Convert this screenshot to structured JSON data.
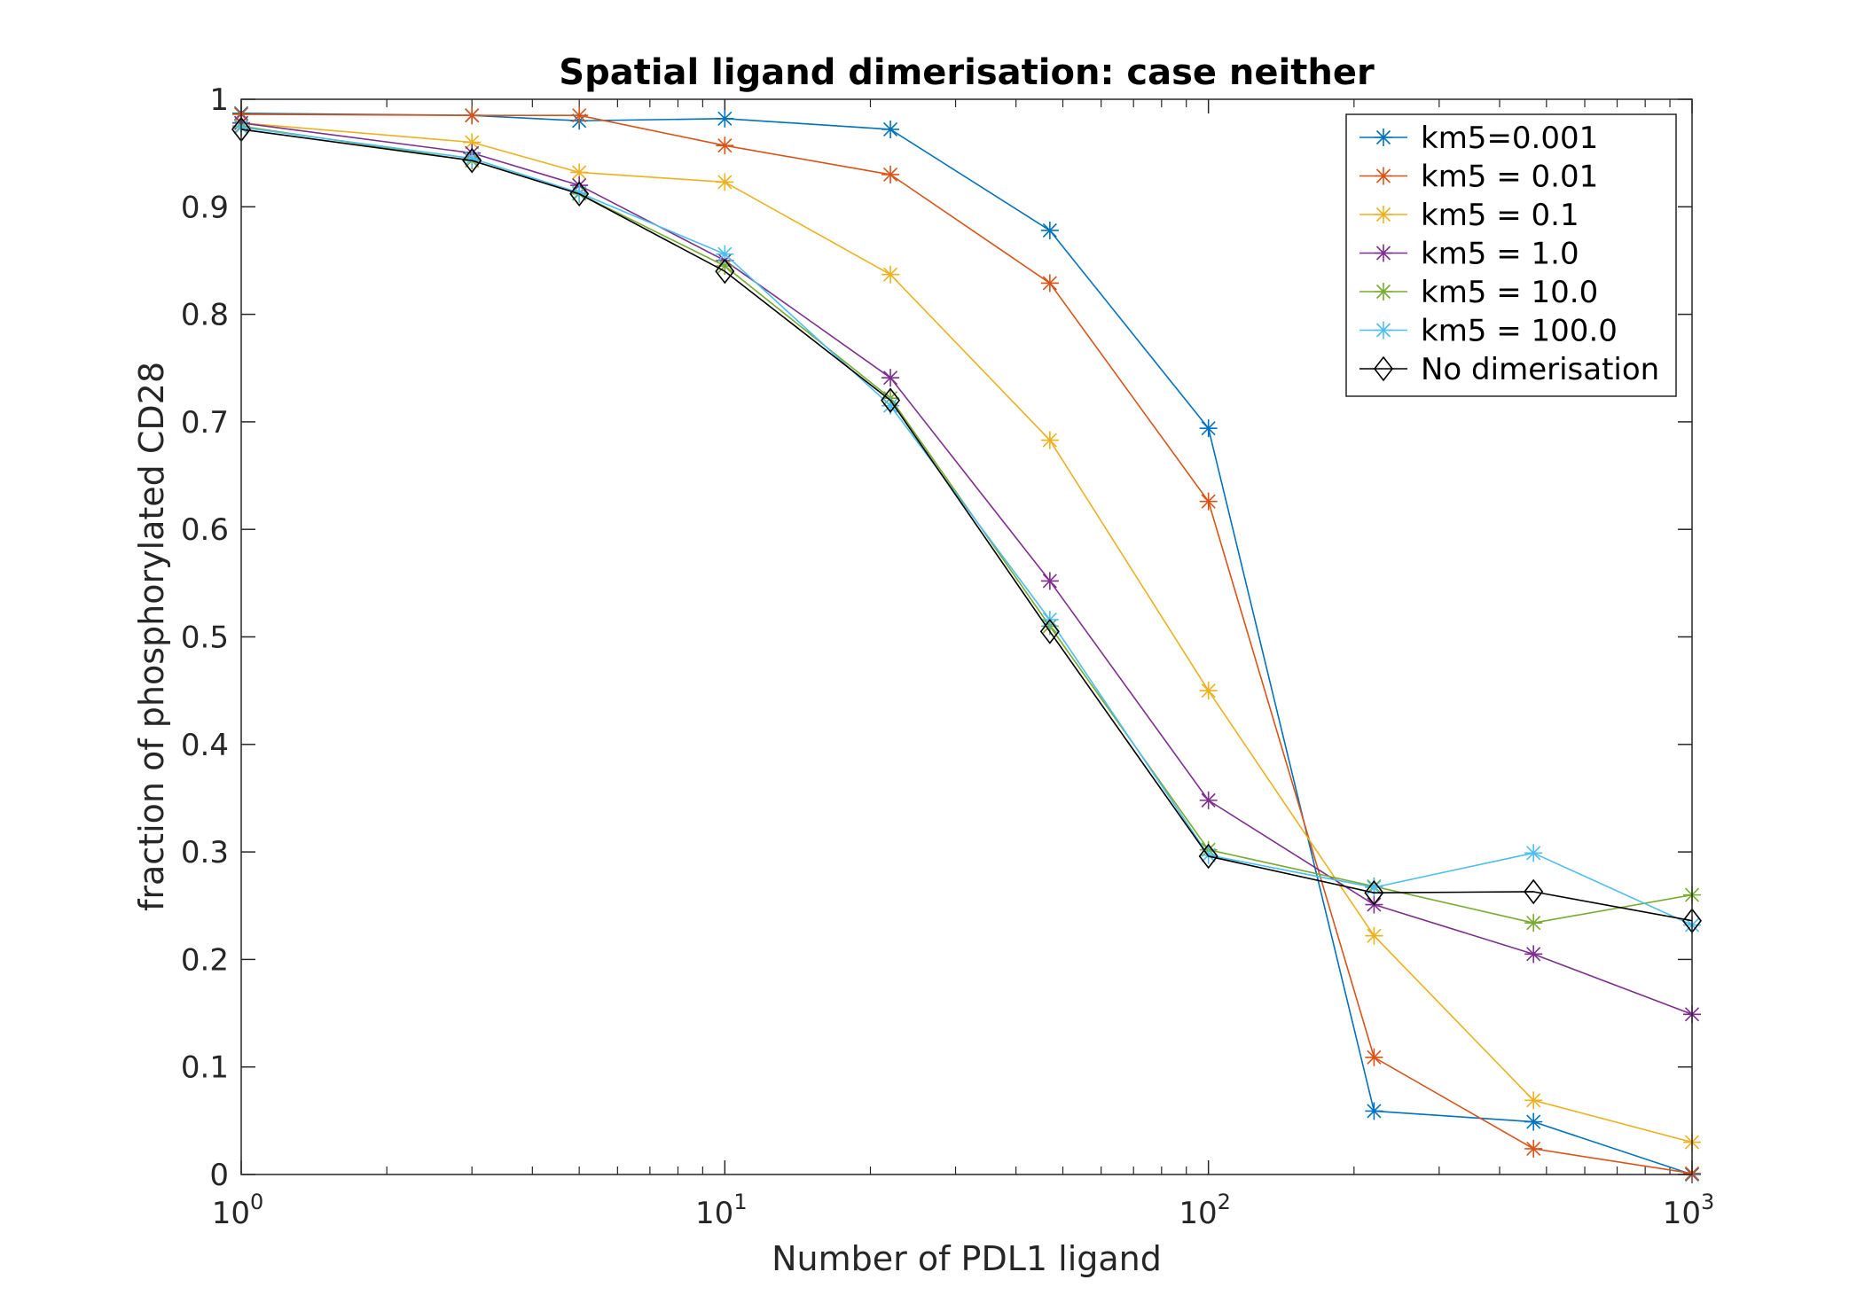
{
  "chart_data": {
    "type": "line",
    "title": "Spatial ligand dimerisation: case neither",
    "xlabel": "Number of PDL1 ligand",
    "ylabel": "fraction of phosphorylated CD28",
    "xscale": "log",
    "xlim": [
      1,
      1000
    ],
    "ylim": [
      0,
      1
    ],
    "x_ticks": [
      {
        "base": "10",
        "exp": "0"
      },
      {
        "base": "10",
        "exp": "1"
      },
      {
        "base": "10",
        "exp": "2"
      },
      {
        "base": "10",
        "exp": "3"
      }
    ],
    "y_ticks": [
      "0",
      "0.1",
      "0.2",
      "0.3",
      "0.4",
      "0.5",
      "0.6",
      "0.7",
      "0.8",
      "0.9",
      "1"
    ],
    "grid": false,
    "legend_position": "top-right",
    "x": [
      1,
      3,
      5,
      10,
      22,
      47,
      100,
      220,
      470,
      1000
    ],
    "series": [
      {
        "name": "km5=0.001",
        "color": "#0072BD",
        "marker": "asterisk",
        "values": [
          0.987,
          0.985,
          0.98,
          0.982,
          0.972,
          0.878,
          0.694,
          0.059,
          0.049,
          0.0
        ]
      },
      {
        "name": "km5 = 0.01",
        "color": "#D95319",
        "marker": "asterisk",
        "values": [
          0.986,
          0.985,
          0.985,
          0.957,
          0.93,
          0.829,
          0.626,
          0.109,
          0.024,
          0.001
        ]
      },
      {
        "name": "km5 = 0.1",
        "color": "#EDB120",
        "marker": "asterisk",
        "values": [
          0.978,
          0.96,
          0.932,
          0.923,
          0.837,
          0.683,
          0.45,
          0.222,
          0.069,
          0.03
        ]
      },
      {
        "name": "km5 = 1.0",
        "color": "#7E2F8E",
        "marker": "asterisk",
        "values": [
          0.978,
          0.95,
          0.92,
          0.85,
          0.741,
          0.552,
          0.348,
          0.251,
          0.205,
          0.149
        ]
      },
      {
        "name": "km5 = 10.0",
        "color": "#77AC30",
        "marker": "asterisk",
        "values": [
          0.975,
          0.943,
          0.912,
          0.845,
          0.722,
          0.51,
          0.302,
          0.268,
          0.234,
          0.26
        ]
      },
      {
        "name": "km5 = 100.0",
        "color": "#4DBEEE",
        "marker": "asterisk",
        "values": [
          0.974,
          0.945,
          0.913,
          0.856,
          0.715,
          0.516,
          0.297,
          0.267,
          0.299,
          0.232
        ]
      },
      {
        "name": "No dimerisation",
        "color": "#000000",
        "marker": "diamond",
        "values": [
          0.972,
          0.943,
          0.912,
          0.84,
          0.72,
          0.505,
          0.296,
          0.262,
          0.263,
          0.236
        ]
      }
    ]
  }
}
